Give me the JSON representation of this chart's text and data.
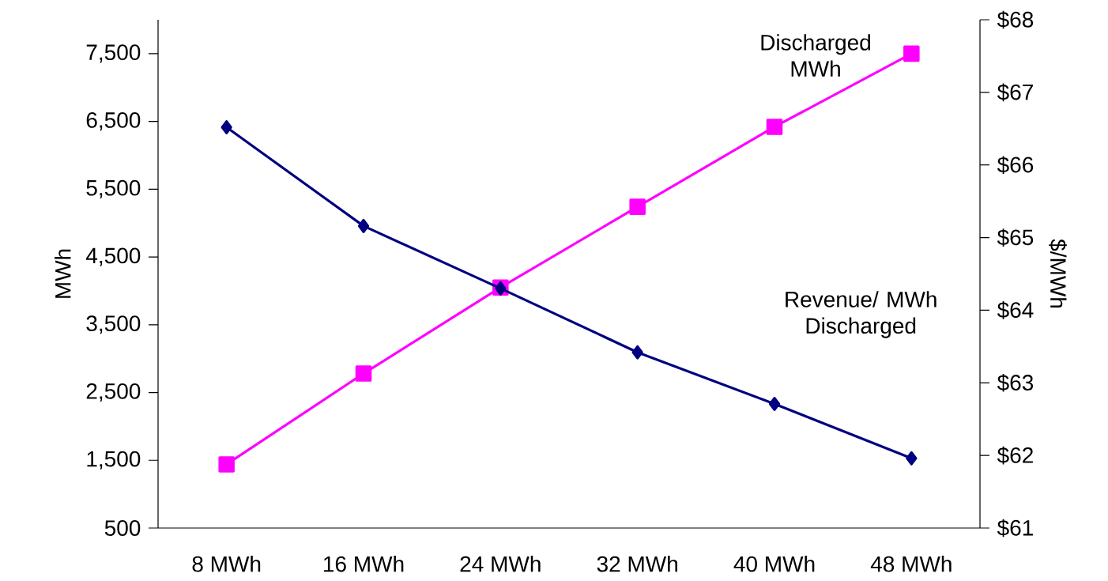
{
  "chart_data": {
    "type": "line",
    "categories": [
      "8 MWh",
      "16 MWh",
      "24 MWh",
      "32 MWh",
      "40 MWh",
      "48 MWh"
    ],
    "ylabel": "MWh",
    "y2label": "$/MWh",
    "ylim": [
      500,
      8000
    ],
    "yticks": [
      {
        "value": 500,
        "label": "500"
      },
      {
        "value": 1500,
        "label": "1,500"
      },
      {
        "value": 2500,
        "label": "2,500"
      },
      {
        "value": 3500,
        "label": "3,500"
      },
      {
        "value": 4500,
        "label": "4,500"
      },
      {
        "value": 5500,
        "label": "5,500"
      },
      {
        "value": 6500,
        "label": "6,500"
      },
      {
        "value": 7500,
        "label": "7,500"
      }
    ],
    "y2lim": [
      61,
      68
    ],
    "y2ticks": [
      {
        "value": 61,
        "label": "$61"
      },
      {
        "value": 62,
        "label": "$62"
      },
      {
        "value": 63,
        "label": "$63"
      },
      {
        "value": 64,
        "label": "$64"
      },
      {
        "value": 65,
        "label": "$65"
      },
      {
        "value": 66,
        "label": "$66"
      },
      {
        "value": 67,
        "label": "$67"
      },
      {
        "value": 68,
        "label": "$68"
      }
    ],
    "series": [
      {
        "name": "Discharged MWh",
        "color": "#ff00ff",
        "marker": "square",
        "values": [
          1440,
          2780,
          4050,
          5240,
          6420,
          7500
        ]
      },
      {
        "name": "Revenue/ MWh Discharged",
        "color": "#000080",
        "marker": "diamond",
        "axis": "y2",
        "values": [
          66.52,
          65.16,
          64.3,
          63.42,
          62.71,
          61.96
        ]
      }
    ]
  }
}
